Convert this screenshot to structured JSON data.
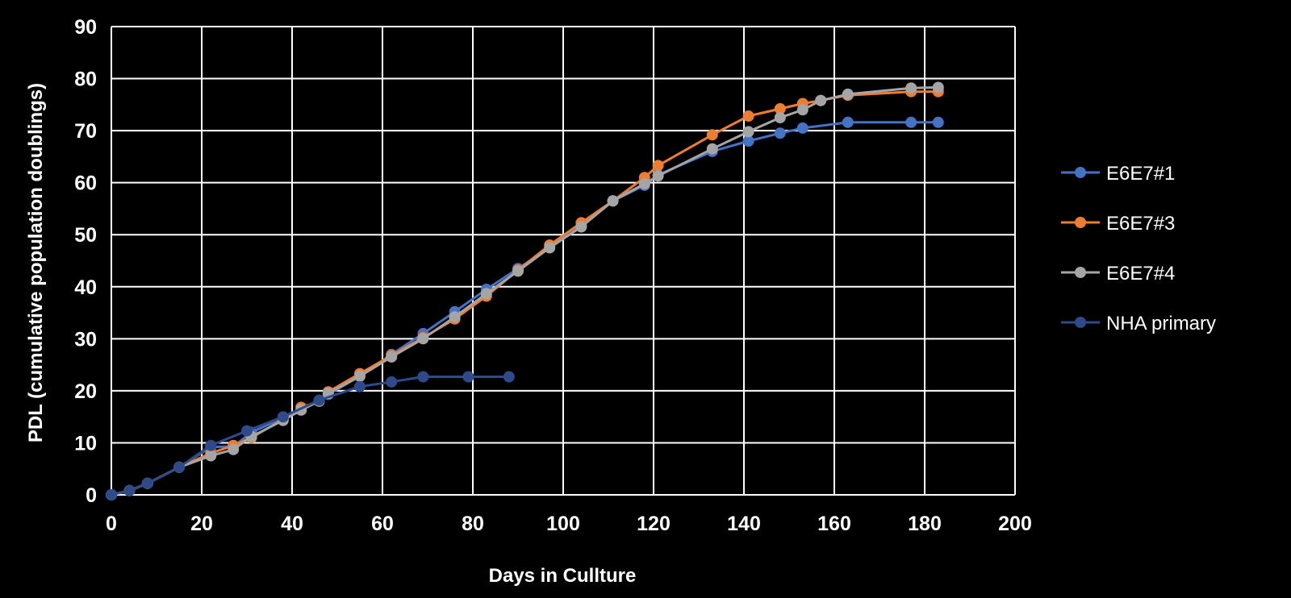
{
  "chart_data": {
    "type": "line",
    "title": "",
    "xlabel": "Days in Cullture",
    "ylabel": "PDL (cumulative population doublings)",
    "xlim": [
      0,
      200
    ],
    "ylim": [
      0,
      90
    ],
    "xticks": [
      0,
      20,
      40,
      60,
      80,
      100,
      120,
      140,
      160,
      180,
      200
    ],
    "yticks": [
      0,
      10,
      20,
      30,
      40,
      50,
      60,
      70,
      80,
      90
    ],
    "grid": true,
    "legend_position": "right",
    "series": [
      {
        "name": "E6E7#1",
        "color": "#4472C4",
        "points": [
          [
            0,
            0
          ],
          [
            4,
            0.8
          ],
          [
            8,
            2.2
          ],
          [
            15,
            5.3
          ],
          [
            22,
            9.2
          ],
          [
            27,
            9.3
          ],
          [
            31,
            12
          ],
          [
            38,
            14.8
          ],
          [
            42,
            16.3
          ],
          [
            46,
            18.1
          ],
          [
            48,
            19.3
          ],
          [
            55,
            22.8
          ],
          [
            62,
            27
          ],
          [
            69,
            31
          ],
          [
            76,
            35.2
          ],
          [
            83,
            39.5
          ],
          [
            90,
            43.5
          ],
          [
            97,
            47.5
          ],
          [
            104,
            51.8
          ],
          [
            111,
            56.5
          ],
          [
            118,
            59.5
          ],
          [
            121,
            61.5
          ],
          [
            133,
            66
          ],
          [
            141,
            68
          ],
          [
            148,
            69.5
          ],
          [
            153,
            70.5
          ],
          [
            163,
            71.6
          ],
          [
            177,
            71.6
          ],
          [
            183,
            71.6
          ]
        ]
      },
      {
        "name": "E6E7#3",
        "color": "#ED7D31",
        "points": [
          [
            0,
            0
          ],
          [
            4,
            0.8
          ],
          [
            8,
            2.2
          ],
          [
            15,
            5.3
          ],
          [
            22,
            8
          ],
          [
            27,
            9.5
          ],
          [
            31,
            11
          ],
          [
            38,
            14.5
          ],
          [
            42,
            16.8
          ],
          [
            46,
            18
          ],
          [
            48,
            19.8
          ],
          [
            55,
            23.3
          ],
          [
            62,
            26.8
          ],
          [
            69,
            30.2
          ],
          [
            76,
            33.8
          ],
          [
            83,
            38.2
          ],
          [
            90,
            43.2
          ],
          [
            97,
            48
          ],
          [
            104,
            52.3
          ],
          [
            111,
            56.5
          ],
          [
            118,
            61
          ],
          [
            121,
            63.3
          ],
          [
            133,
            69.2
          ],
          [
            141,
            72.8
          ],
          [
            148,
            74.2
          ],
          [
            153,
            75.2
          ],
          [
            157,
            75.8
          ],
          [
            163,
            76.8
          ],
          [
            177,
            77.5
          ],
          [
            183,
            77.5
          ]
        ]
      },
      {
        "name": "E6E7#4",
        "color": "#A5A5A5",
        "points": [
          [
            0,
            0
          ],
          [
            4,
            0.8
          ],
          [
            8,
            2.2
          ],
          [
            15,
            5.3
          ],
          [
            22,
            7.5
          ],
          [
            27,
            8.7
          ],
          [
            31,
            11.2
          ],
          [
            38,
            14.3
          ],
          [
            42,
            16.3
          ],
          [
            46,
            18
          ],
          [
            48,
            19.5
          ],
          [
            55,
            22.8
          ],
          [
            62,
            26.5
          ],
          [
            69,
            30
          ],
          [
            76,
            34.2
          ],
          [
            83,
            38.7
          ],
          [
            90,
            43
          ],
          [
            97,
            47.5
          ],
          [
            104,
            51.5
          ],
          [
            111,
            56.5
          ],
          [
            118,
            59.8
          ],
          [
            121,
            61.3
          ],
          [
            133,
            66.5
          ],
          [
            141,
            69.8
          ],
          [
            148,
            72.5
          ],
          [
            153,
            74
          ],
          [
            157,
            75.8
          ],
          [
            163,
            77
          ],
          [
            177,
            78.2
          ],
          [
            183,
            78.3
          ]
        ]
      },
      {
        "name": "NHA primary",
        "color": "#2E4A8A",
        "points": [
          [
            0,
            0
          ],
          [
            4,
            0.8
          ],
          [
            8,
            2.2
          ],
          [
            15,
            5.3
          ],
          [
            22,
            9.5
          ],
          [
            30,
            12.3
          ],
          [
            38,
            15
          ],
          [
            46,
            18.2
          ],
          [
            55,
            20.8
          ],
          [
            62,
            21.7
          ],
          [
            69,
            22.7
          ],
          [
            79,
            22.7
          ],
          [
            88,
            22.7
          ]
        ]
      }
    ]
  }
}
